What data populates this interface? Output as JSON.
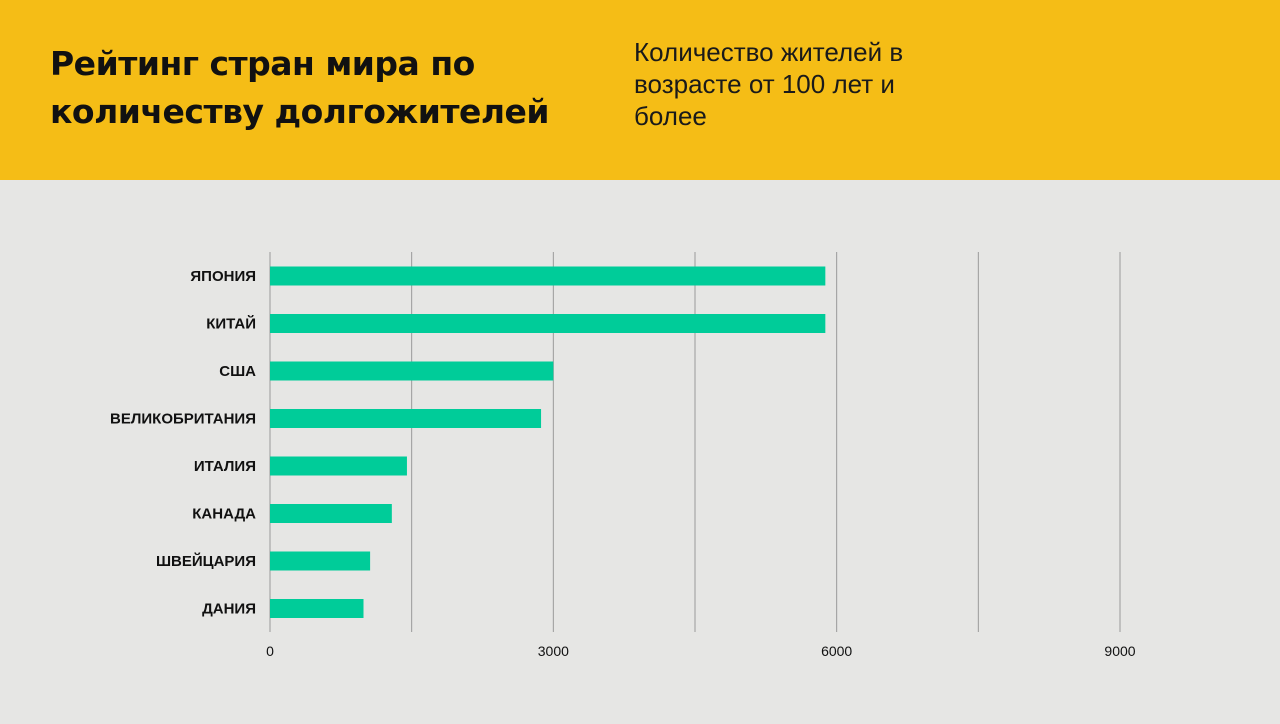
{
  "header": {
    "title": "Рейтинг стран мира по количеству долгожителей",
    "subtitle": "Количество жителей в возрасте от 100 лет и более"
  },
  "colors": {
    "header_bg": "#f5bd16",
    "page_bg": "#e6e6e4",
    "bar": "#00cc99",
    "grid": "#9a9a9a"
  },
  "chart_data": {
    "type": "bar",
    "orientation": "horizontal",
    "categories": [
      "ЯПОНИЯ",
      "КИТАЙ",
      "США",
      "ВЕЛИКОБРИТАНИЯ",
      "ИТАЛИЯ",
      "КАНАДА",
      "ШВЕЙЦАРИЯ",
      "ДАНИЯ"
    ],
    "values": [
      5880,
      5880,
      3000,
      2870,
      1450,
      1290,
      1060,
      990
    ],
    "xlim": [
      0,
      9000
    ],
    "xticks": [
      0,
      3000,
      6000,
      9000
    ],
    "tick_labels": [
      "0",
      "3000",
      "6000",
      "9000"
    ],
    "gridlines": [
      1500,
      3000,
      4500,
      6000,
      7500,
      9000
    ],
    "grid": true,
    "legend": false
  }
}
